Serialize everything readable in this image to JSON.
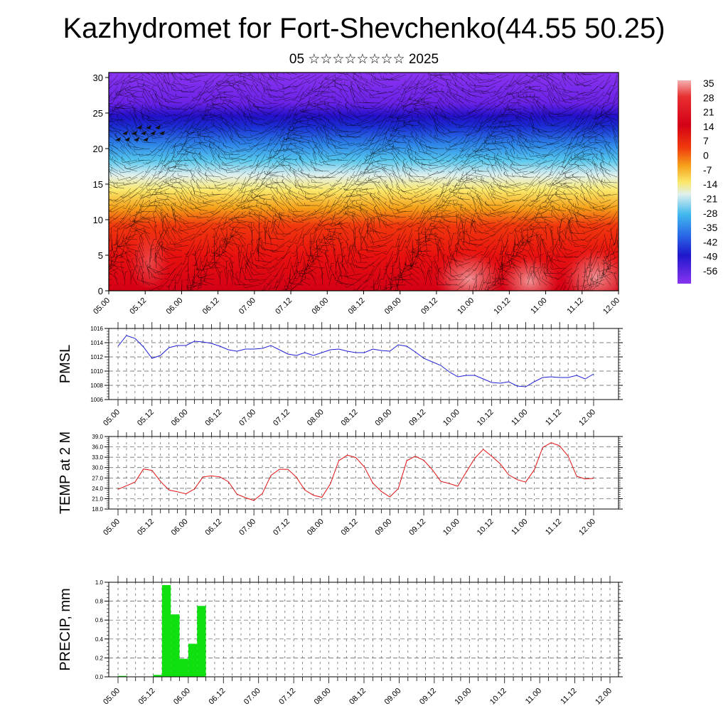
{
  "header": {
    "title": "Kazhydromet for Fort-Shevchenko(44.55 50.25)",
    "subtitle": "05 ☆☆☆☆☆☆☆☆ 2025"
  },
  "colors": {
    "pmsl_line": "#1f1fd6",
    "temp_line": "#e01010",
    "precip_bar": "#10e010",
    "grid": "#555555"
  },
  "chart_data": [
    {
      "type": "heatmap",
      "title": "",
      "xlabel": "",
      "ylabel": "",
      "x_tick_labels": [
        "05.00",
        "05.12",
        "06.00",
        "06.12",
        "07.00",
        "07.12",
        "08.00",
        "08.12",
        "09.00",
        "09.12",
        "10.00",
        "10.12",
        "11.00",
        "11.12",
        "12.00"
      ],
      "y_ticks": [
        0,
        5,
        10,
        15,
        20,
        25,
        30
      ],
      "ylim": [
        0,
        30.7
      ],
      "overlay": "wind barbs",
      "colorbar": {
        "labels": [
          "35",
          "28",
          "21",
          "14",
          "7",
          "0",
          "-7",
          "-14",
          "-21",
          "-28",
          "-35",
          "-42",
          "-49",
          "-56"
        ],
        "range": [
          -63,
          42
        ]
      },
      "temperature_profile_by_level": [
        {
          "level": 0,
          "value": 28
        },
        {
          "level": 5,
          "value": 24
        },
        {
          "level": 10,
          "value": 14
        },
        {
          "level": 15,
          "value": -8
        },
        {
          "level": 20,
          "value": -35
        },
        {
          "level": 25,
          "value": -62
        },
        {
          "level": 30,
          "value": -56
        }
      ]
    },
    {
      "type": "line",
      "title": "",
      "ylabel": "PMSL",
      "xlabel": "",
      "y_ticks": [
        "1006",
        "1008",
        "1010",
        "1012",
        "1014",
        "1016"
      ],
      "ylim": [
        1006,
        1016
      ],
      "x_tick_labels": [
        "05.00",
        "05.12",
        "06.00",
        "06.12",
        "07.00",
        "07.12",
        "08.00",
        "08.12",
        "09.00",
        "09.12",
        "10.00",
        "10.12",
        "11.00",
        "11.12",
        "12.00"
      ],
      "x_hours": [
        0,
        3,
        6,
        9,
        12,
        15,
        18,
        21,
        24,
        27,
        30,
        33,
        36,
        39,
        42,
        45,
        48,
        51,
        54,
        57,
        60,
        63,
        66,
        69,
        72,
        75,
        78,
        81,
        84,
        87,
        90,
        93,
        96,
        99,
        102,
        105,
        108,
        111,
        114,
        117,
        120,
        123,
        126,
        129,
        132,
        135,
        138,
        141,
        144,
        147,
        150,
        153,
        156,
        159,
        162,
        165,
        168
      ],
      "values": [
        1013.5,
        1015.0,
        1014.6,
        1013.4,
        1011.8,
        1012.2,
        1013.3,
        1013.6,
        1013.6,
        1014.2,
        1014.1,
        1013.9,
        1013.5,
        1013.0,
        1012.8,
        1013.1,
        1013.1,
        1013.2,
        1013.6,
        1013.0,
        1012.4,
        1012.2,
        1012.6,
        1012.2,
        1012.6,
        1013.0,
        1013.1,
        1012.8,
        1012.6,
        1012.6,
        1013.1,
        1012.9,
        1012.8,
        1013.7,
        1013.5,
        1012.7,
        1011.8,
        1011.3,
        1010.8,
        1009.9,
        1009.2,
        1009.4,
        1009.4,
        1008.9,
        1008.4,
        1008.3,
        1008.5,
        1007.9,
        1007.8,
        1008.5,
        1009.1,
        1009.2,
        1009.1,
        1009.1,
        1009.4,
        1008.9,
        1009.6
      ]
    },
    {
      "type": "line",
      "title": "",
      "ylabel": "TEMP at 2 M",
      "xlabel": "",
      "y_ticks": [
        "18.0",
        "21.0",
        "24.0",
        "27.0",
        "30.0",
        "33.0",
        "36.0",
        "39.0"
      ],
      "ylim": [
        18,
        39
      ],
      "x_tick_labels": [
        "05.00",
        "05.12",
        "06.00",
        "06.12",
        "07.00",
        "07.12",
        "08.00",
        "08.12",
        "09.00",
        "09.12",
        "10.00",
        "10.12",
        "11.00",
        "11.12",
        "12.00"
      ],
      "x_hours": [
        0,
        6,
        9,
        12,
        15,
        18,
        21,
        24,
        27,
        30,
        33,
        36,
        39,
        42,
        45,
        48,
        51,
        54,
        57,
        60,
        63,
        66,
        69,
        72,
        75,
        78,
        81,
        84,
        87,
        90,
        93,
        96,
        99,
        102,
        105,
        108,
        111,
        114,
        117,
        120,
        123,
        126,
        129,
        132,
        135,
        138,
        141,
        144,
        147,
        150,
        153,
        156,
        159,
        162,
        165,
        168
      ],
      "values": [
        23.7,
        25.8,
        29.6,
        29.2,
        26.0,
        23.5,
        23.0,
        22.4,
        23.8,
        27.3,
        27.6,
        27.3,
        25.9,
        22.3,
        21.3,
        20.5,
        22.5,
        27.7,
        29.5,
        29.5,
        27.2,
        23.5,
        22.0,
        21.4,
        25.3,
        32.0,
        33.6,
        32.9,
        30.2,
        25.5,
        23.1,
        21.5,
        23.9,
        32.0,
        33.3,
        32.1,
        29.4,
        26.0,
        25.4,
        24.6,
        28.7,
        32.7,
        35.3,
        33.3,
        31.1,
        27.9,
        26.5,
        25.8,
        29.3,
        35.8,
        37.2,
        36.3,
        33.3,
        27.5,
        26.7,
        26.9
      ]
    },
    {
      "type": "bar",
      "title": "",
      "ylabel": "PRECIP, mm",
      "xlabel": "",
      "y_ticks": [
        "0.0",
        "0.2",
        "0.4",
        "0.6",
        "0.8",
        "1.0"
      ],
      "ylim": [
        0,
        1.0
      ],
      "x_tick_labels": [
        "05.00",
        "05.12",
        "06.00",
        "06.12",
        "07.00",
        "07.12",
        "08.00",
        "08.12",
        "09.00",
        "09.12",
        "10.00",
        "10.12",
        "11.00",
        "11.12",
        "12.00"
      ],
      "bars": [
        {
          "start_hour": 0,
          "value": 0.01
        },
        {
          "start_hour": 12,
          "value": 0.02
        },
        {
          "start_hour": 15,
          "value": 0.97
        },
        {
          "start_hour": 18,
          "value": 0.66
        },
        {
          "start_hour": 21,
          "value": 0.19
        },
        {
          "start_hour": 24,
          "value": 0.35
        },
        {
          "start_hour": 27,
          "value": 0.75
        }
      ]
    }
  ]
}
